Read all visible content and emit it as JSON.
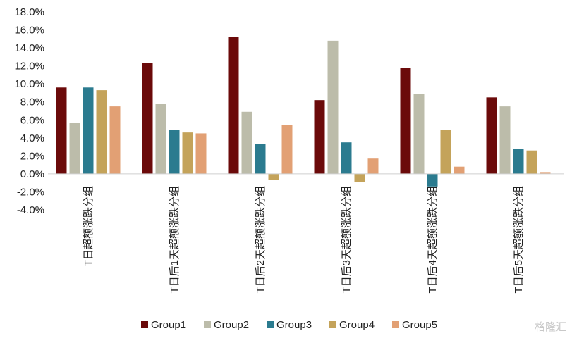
{
  "chart_data": {
    "type": "bar",
    "categories": [
      "T日超额涨跌分组",
      "T日后1天超额涨跌分组",
      "T日后2天超额涨跌分组",
      "T日后3天超额涨跌分组",
      "T日后4天超额涨跌分组",
      "T日后5天超额涨跌分组"
    ],
    "series": [
      {
        "name": "Group1",
        "color": "#6b0a0a",
        "values": [
          9.6,
          12.3,
          15.2,
          8.2,
          11.8,
          8.5
        ]
      },
      {
        "name": "Group2",
        "color": "#bcbcaa",
        "values": [
          5.7,
          7.8,
          6.9,
          14.8,
          8.9,
          7.5
        ]
      },
      {
        "name": "Group3",
        "color": "#2b7b8f",
        "values": [
          9.6,
          4.9,
          3.3,
          3.5,
          -1.4,
          2.8
        ]
      },
      {
        "name": "Group4",
        "color": "#c4a35a",
        "values": [
          9.3,
          4.6,
          -0.7,
          -0.9,
          4.9,
          2.6
        ]
      },
      {
        "name": "Group5",
        "color": "#e2a074",
        "values": [
          7.5,
          4.5,
          5.4,
          1.7,
          0.8,
          0.2
        ]
      }
    ],
    "yticks": [
      "18.0%",
      "16.0%",
      "14.0%",
      "12.0%",
      "10.0%",
      "8.0%",
      "6.0%",
      "4.0%",
      "2.0%",
      "0.0%",
      "-2.0%",
      "-4.0%"
    ],
    "ylim": [
      -4,
      18
    ],
    "legend_position": "bottom",
    "grid": false
  },
  "watermark": "格隆汇"
}
